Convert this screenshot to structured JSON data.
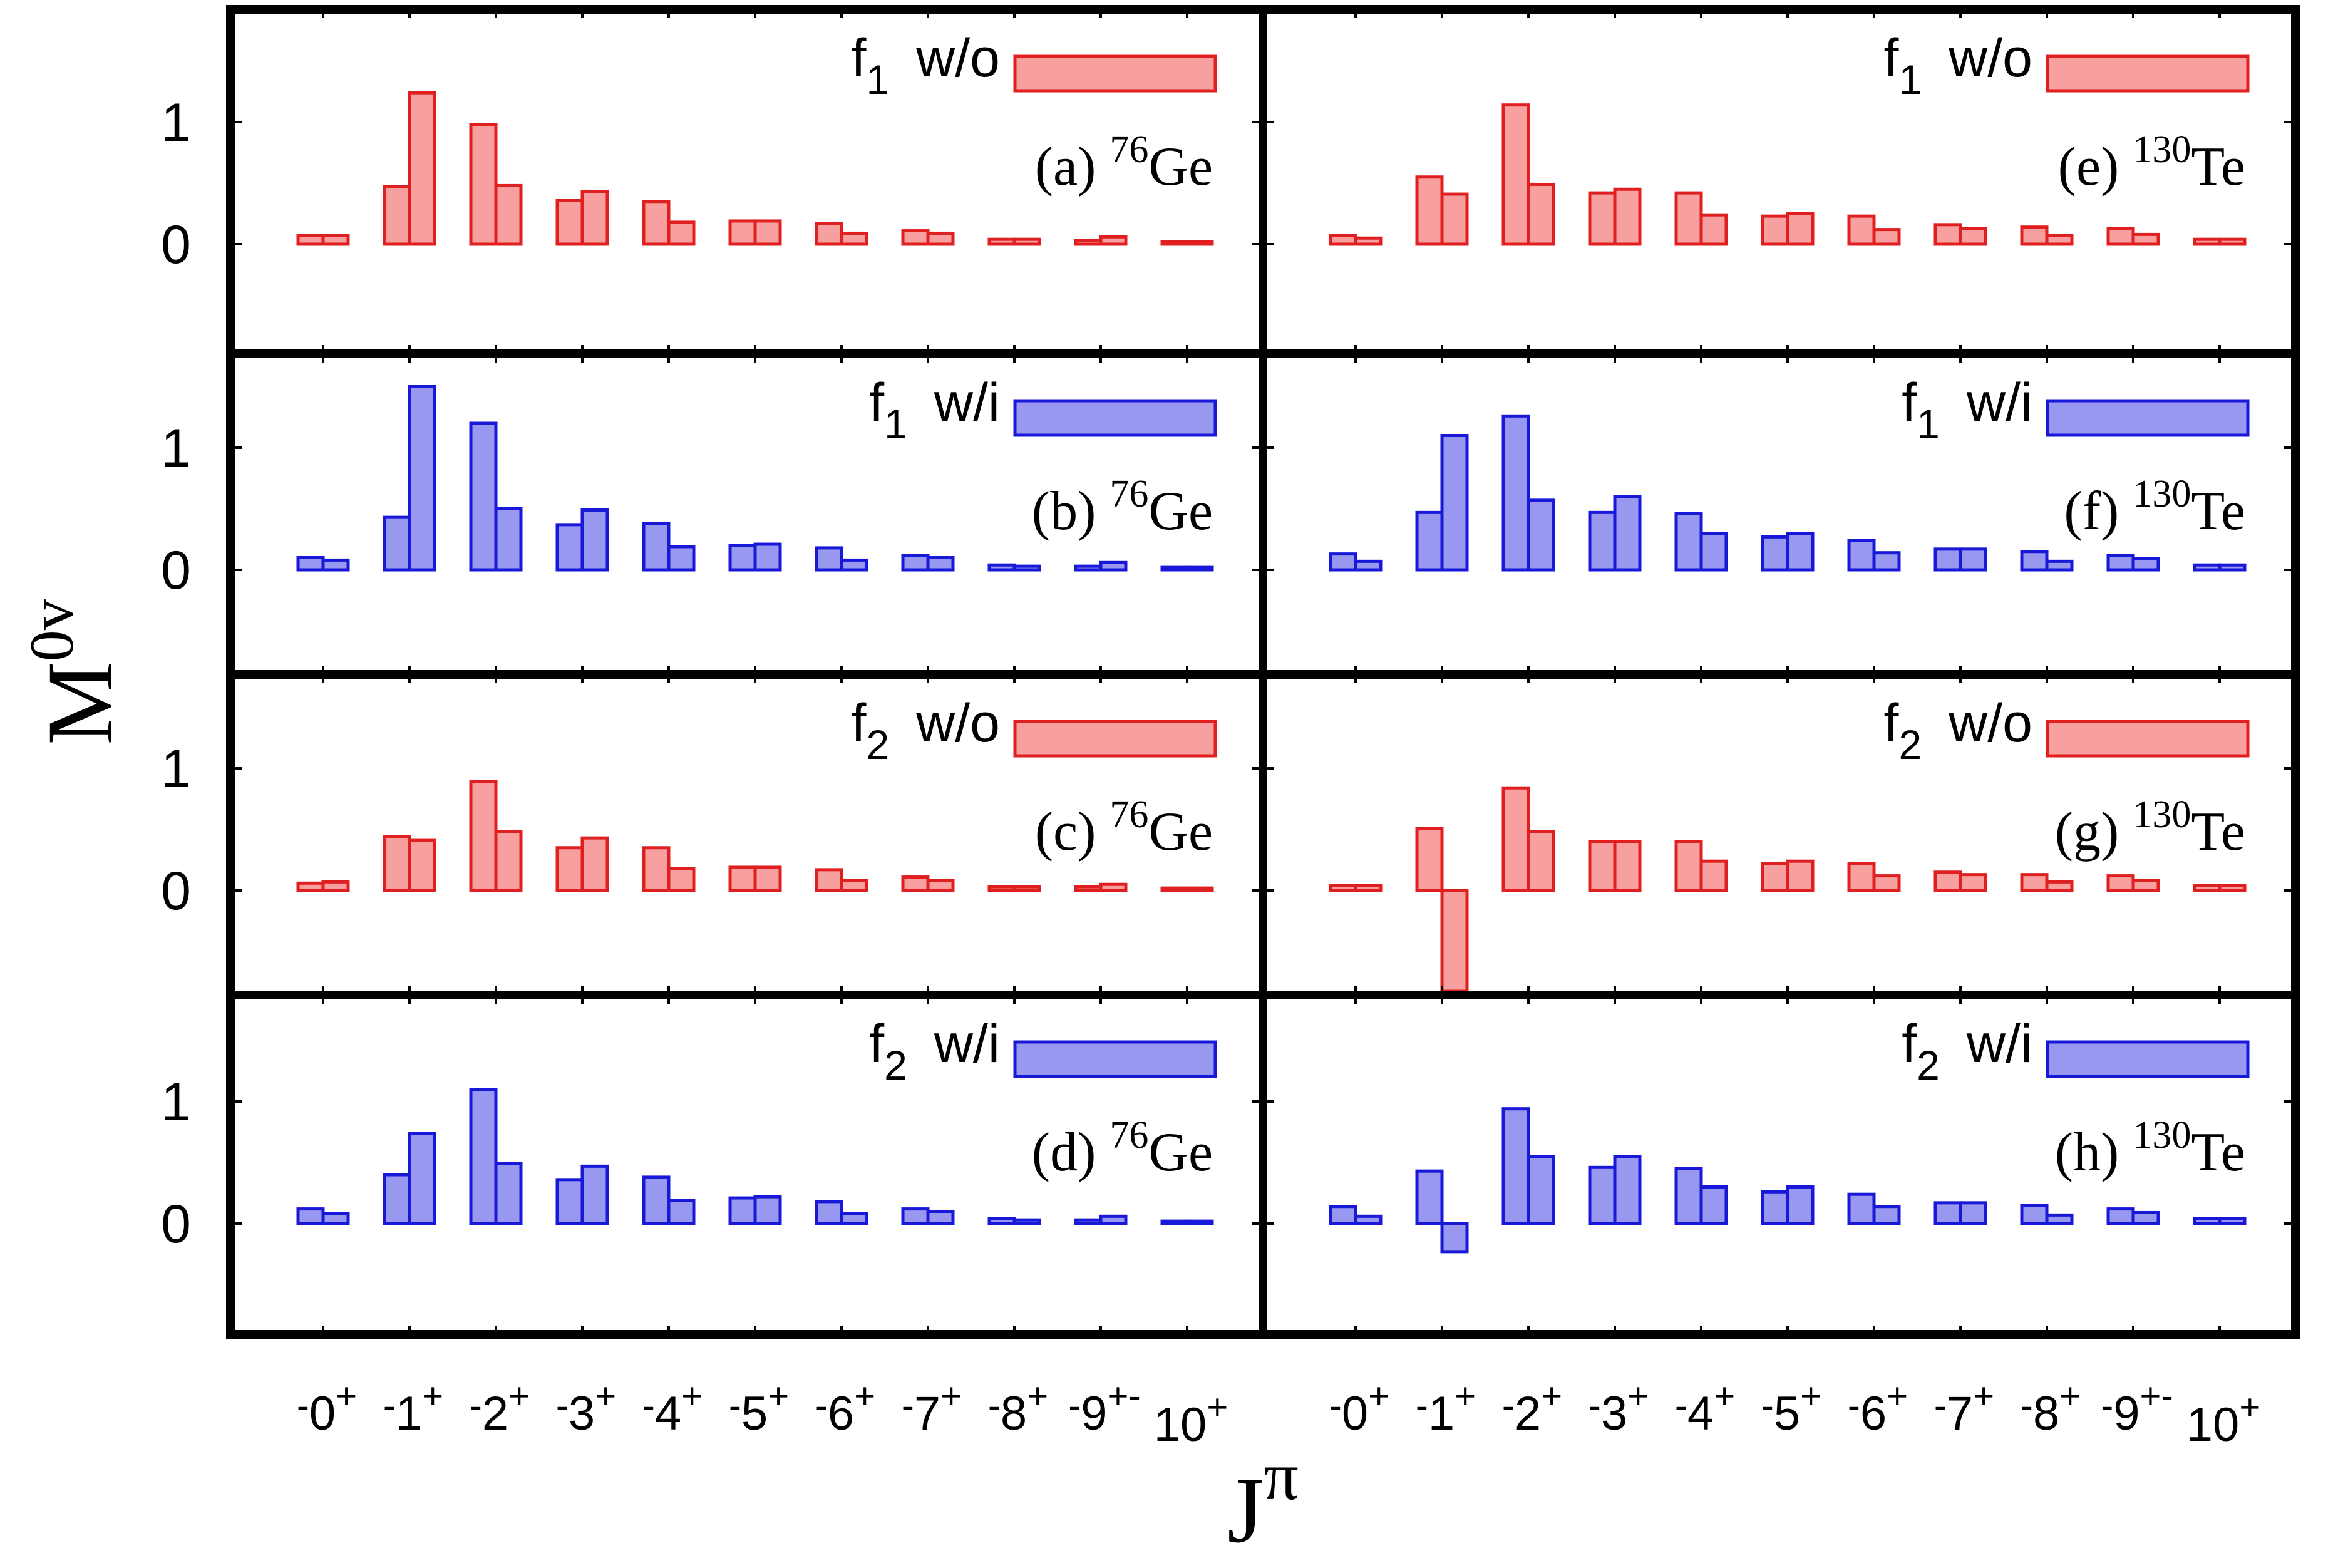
{
  "figure": {
    "ylabel": "M",
    "ylabel_sup": "0v",
    "xlabel": "J",
    "xlabel_sup": "π",
    "tick_labels": [
      {
        "pre": "-",
        "main": "0",
        "sup": "+"
      },
      {
        "pre": "-",
        "main": "1",
        "sup": "+"
      },
      {
        "pre": "-",
        "main": "2",
        "sup": "+"
      },
      {
        "pre": "-",
        "main": "3",
        "sup": "+"
      },
      {
        "pre": "-",
        "main": "4",
        "sup": "+"
      },
      {
        "pre": "-",
        "main": "5",
        "sup": "+"
      },
      {
        "pre": "-",
        "main": "6",
        "sup": "+"
      },
      {
        "pre": "-",
        "main": "7",
        "sup": "+"
      },
      {
        "pre": "-",
        "main": "8",
        "sup": "+"
      },
      {
        "pre": "-",
        "main": "9",
        "sup": "+-"
      },
      {
        "pre": "",
        "main": "10",
        "sup": "+"
      }
    ],
    "ytick_labels": [
      "1",
      "0"
    ],
    "colors": {
      "red_fill": "#f8a0a0",
      "red_edge": "#e02020",
      "blue_fill": "#9898f0",
      "blue_edge": "#1818d8",
      "frame": "#000000"
    }
  },
  "chart_data": [
    {
      "type": "bar",
      "panel": "a",
      "label": "(a)",
      "nucleus_mass": "76",
      "nucleus": "Ge",
      "legend": {
        "f": "f",
        "f_sub": "1",
        "text": "w/o"
      },
      "color": "red",
      "categories": [
        "0+",
        "1+",
        "2+",
        "3+",
        "4+",
        "5+",
        "6+",
        "7+",
        "8+",
        "9+",
        "10+"
      ],
      "ylim": [
        -0.95,
        1.9
      ],
      "yticks": [
        0,
        1
      ],
      "series": [
        {
          "values": [
            0.07,
            0.47,
            0.98,
            0.36,
            0.35,
            0.19,
            0.17,
            0.11,
            0.04,
            0.03,
            0.02
          ]
        },
        {
          "values": [
            0.07,
            1.24,
            0.48,
            0.43,
            0.18,
            0.19,
            0.09,
            0.09,
            0.04,
            0.06,
            0.02
          ]
        }
      ]
    },
    {
      "type": "bar",
      "panel": "b",
      "label": "(b)",
      "nucleus_mass": "76",
      "nucleus": "Ge",
      "legend": {
        "f": "f",
        "f_sub": "1",
        "text": "w/i"
      },
      "color": "blue",
      "categories": [
        "0+",
        "1+",
        "2+",
        "3+",
        "4+",
        "5+",
        "6+",
        "7+",
        "8+",
        "9+",
        "10+"
      ],
      "ylim": [
        -0.95,
        1.9
      ],
      "yticks": [
        0,
        1
      ],
      "series": [
        {
          "values": [
            0.1,
            0.43,
            1.2,
            0.37,
            0.38,
            0.2,
            0.18,
            0.12,
            0.04,
            0.03,
            0.02
          ]
        },
        {
          "values": [
            0.08,
            1.5,
            0.5,
            0.49,
            0.19,
            0.21,
            0.08,
            0.1,
            0.03,
            0.06,
            0.02
          ]
        }
      ]
    },
    {
      "type": "bar",
      "panel": "c",
      "label": "(c)",
      "nucleus_mass": "76",
      "nucleus": "Ge",
      "legend": {
        "f": "f",
        "f_sub": "2",
        "text": "w/o"
      },
      "color": "red",
      "categories": [
        "0+",
        "1+",
        "2+",
        "3+",
        "4+",
        "5+",
        "6+",
        "7+",
        "8+",
        "9+",
        "10+"
      ],
      "ylim": [
        -0.95,
        1.9
      ],
      "yticks": [
        0,
        1
      ],
      "series": [
        {
          "values": [
            0.06,
            0.44,
            0.89,
            0.35,
            0.35,
            0.19,
            0.17,
            0.11,
            0.03,
            0.03,
            0.02
          ]
        },
        {
          "values": [
            0.07,
            0.41,
            0.48,
            0.43,
            0.18,
            0.19,
            0.08,
            0.08,
            0.03,
            0.05,
            0.02
          ]
        }
      ]
    },
    {
      "type": "bar",
      "panel": "d",
      "label": "(d)",
      "nucleus_mass": "76",
      "nucleus": "Ge",
      "legend": {
        "f": "f",
        "f_sub": "2",
        "text": "w/i"
      },
      "color": "blue",
      "categories": [
        "0+",
        "1+",
        "2+",
        "3+",
        "4+",
        "5+",
        "6+",
        "7+",
        "8+",
        "9+",
        "10+"
      ],
      "ylim": [
        -0.95,
        1.9
      ],
      "yticks": [
        0,
        1
      ],
      "series": [
        {
          "values": [
            0.12,
            0.4,
            1.1,
            0.36,
            0.38,
            0.21,
            0.18,
            0.12,
            0.04,
            0.03,
            0.02
          ]
        },
        {
          "values": [
            0.08,
            0.74,
            0.49,
            0.47,
            0.19,
            0.22,
            0.08,
            0.1,
            0.03,
            0.06,
            0.02
          ]
        }
      ]
    },
    {
      "type": "bar",
      "panel": "e",
      "label": "(e)",
      "nucleus_mass": "130",
      "nucleus": "Te",
      "legend": {
        "f": "f",
        "f_sub": "1",
        "text": "w/o"
      },
      "color": "red",
      "categories": [
        "0+",
        "1+",
        "2+",
        "3+",
        "4+",
        "5+",
        "6+",
        "7+",
        "8+",
        "9+",
        "10+"
      ],
      "ylim": [
        -0.95,
        1.9
      ],
      "yticks": [
        0,
        1
      ],
      "series": [
        {
          "values": [
            0.07,
            0.55,
            1.14,
            0.42,
            0.42,
            0.23,
            0.23,
            0.16,
            0.14,
            0.13,
            0.04
          ]
        },
        {
          "values": [
            0.05,
            0.41,
            0.49,
            0.45,
            0.24,
            0.25,
            0.12,
            0.13,
            0.07,
            0.08,
            0.04
          ]
        }
      ]
    },
    {
      "type": "bar",
      "panel": "f",
      "label": "(f)",
      "nucleus_mass": "130",
      "nucleus": "Te",
      "legend": {
        "f": "f",
        "f_sub": "1",
        "text": "w/i"
      },
      "color": "blue",
      "categories": [
        "0+",
        "1+",
        "2+",
        "3+",
        "4+",
        "5+",
        "6+",
        "7+",
        "8+",
        "9+",
        "10+"
      ],
      "ylim": [
        -0.95,
        1.9
      ],
      "yticks": [
        0,
        1
      ],
      "series": [
        {
          "values": [
            0.13,
            0.47,
            1.26,
            0.47,
            0.46,
            0.27,
            0.24,
            0.17,
            0.15,
            0.12,
            0.04
          ]
        },
        {
          "values": [
            0.07,
            1.1,
            0.57,
            0.6,
            0.3,
            0.3,
            0.14,
            0.17,
            0.07,
            0.09,
            0.04
          ]
        }
      ]
    },
    {
      "type": "bar",
      "panel": "g",
      "label": "(g)",
      "nucleus_mass": "130",
      "nucleus": "Te",
      "legend": {
        "f": "f",
        "f_sub": "2",
        "text": "w/o"
      },
      "color": "red",
      "categories": [
        "0+",
        "1+",
        "2+",
        "3+",
        "4+",
        "5+",
        "6+",
        "7+",
        "8+",
        "9+",
        "10+"
      ],
      "ylim": [
        -0.95,
        1.9
      ],
      "yticks": [
        0,
        1
      ],
      "series": [
        {
          "values": [
            0.04,
            0.51,
            0.84,
            0.4,
            0.4,
            0.22,
            0.22,
            0.15,
            0.13,
            0.12,
            0.04
          ]
        },
        {
          "values": [
            0.04,
            -0.95,
            0.48,
            0.4,
            0.24,
            0.24,
            0.12,
            0.13,
            0.07,
            0.08,
            0.04
          ]
        }
      ]
    },
    {
      "type": "bar",
      "panel": "h",
      "label": "(h)",
      "nucleus_mass": "130",
      "nucleus": "Te",
      "legend": {
        "f": "f",
        "f_sub": "2",
        "text": "w/i"
      },
      "color": "blue",
      "categories": [
        "0+",
        "1+",
        "2+",
        "3+",
        "4+",
        "5+",
        "6+",
        "7+",
        "8+",
        "9+",
        "10+"
      ],
      "ylim": [
        -0.95,
        1.9
      ],
      "yticks": [
        0,
        1
      ],
      "series": [
        {
          "values": [
            0.14,
            0.43,
            0.94,
            0.46,
            0.45,
            0.26,
            0.24,
            0.17,
            0.15,
            0.12,
            0.04
          ]
        },
        {
          "values": [
            0.06,
            -0.23,
            0.55,
            0.55,
            0.3,
            0.3,
            0.14,
            0.17,
            0.07,
            0.09,
            0.04
          ]
        }
      ]
    }
  ]
}
